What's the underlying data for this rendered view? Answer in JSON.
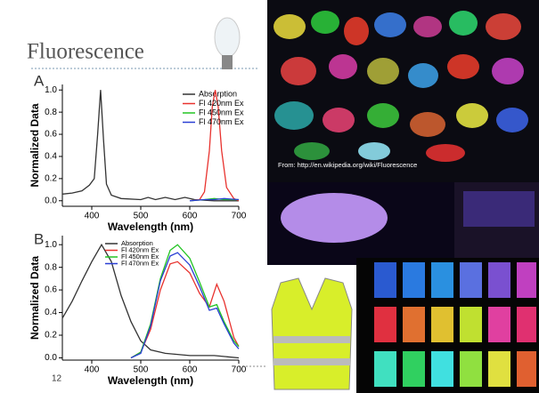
{
  "title": "Fluorescence",
  "caption": "From: http://en.wikipedia.org/wiki/Fluorescence",
  "page_number": "12",
  "chart_data": [
    {
      "type": "line",
      "panel_label": "A",
      "x_label": "Wavelength (nm)",
      "y_label": "Normalized Data",
      "xlim": [
        340,
        700
      ],
      "xticks": [
        400,
        500,
        600,
        700
      ],
      "ylim": [
        -0.05,
        1.05
      ],
      "yticks": [
        {
          "value": 0,
          "label": "0.0"
        },
        0.2,
        0.4,
        0.6,
        0.8,
        {
          "value": 1,
          "label": "1.0"
        }
      ],
      "series": [
        {
          "name": "Absorption",
          "color": "#333333",
          "x": [
            340,
            360,
            380,
            395,
            405,
            412,
            418,
            424,
            430,
            440,
            460,
            500,
            515,
            530,
            550,
            570,
            590,
            610,
            650,
            700
          ],
          "values": [
            0.06,
            0.07,
            0.09,
            0.14,
            0.2,
            0.6,
            1.0,
            0.55,
            0.15,
            0.05,
            0.02,
            0.01,
            0.03,
            0.01,
            0.03,
            0.01,
            0.03,
            0.01,
            0.0,
            0.0
          ]
        },
        {
          "name": "Fl 420nm Ex",
          "color": "#e8322e",
          "x": [
            600,
            620,
            630,
            640,
            646,
            652,
            658,
            665,
            675,
            690,
            700
          ],
          "values": [
            0.0,
            0.01,
            0.08,
            0.45,
            0.85,
            1.0,
            0.85,
            0.45,
            0.12,
            0.02,
            0.0
          ]
        },
        {
          "name": "Fl 450nm Ex",
          "color": "#22c422",
          "x": [
            600,
            630,
            650,
            670,
            700
          ],
          "values": [
            0.0,
            0.01,
            0.02,
            0.01,
            0.01
          ]
        },
        {
          "name": "Fl 470nm Ex",
          "color": "#2a3fd4",
          "x": [
            600,
            630,
            650,
            670,
            700
          ],
          "values": [
            0.0,
            0.01,
            0.01,
            0.02,
            0.01
          ]
        }
      ]
    },
    {
      "type": "line",
      "panel_label": "B",
      "x_label": "Wavelength (nm)",
      "y_label": "Normalized Data",
      "xlim": [
        340,
        700
      ],
      "xticks": [
        400,
        500,
        600,
        700
      ],
      "ylim": [
        -0.02,
        1.08
      ],
      "yticks": [
        {
          "value": 0,
          "label": "0.0"
        },
        0.2,
        0.4,
        0.6,
        0.8,
        {
          "value": 1,
          "label": "1.0"
        }
      ],
      "series": [
        {
          "name": "Absorption",
          "color": "#333333",
          "x": [
            340,
            360,
            380,
            400,
            420,
            440,
            460,
            480,
            500,
            520,
            550,
            600,
            650,
            700
          ],
          "values": [
            0.35,
            0.5,
            0.68,
            0.85,
            1.0,
            0.85,
            0.55,
            0.32,
            0.15,
            0.07,
            0.04,
            0.02,
            0.02,
            0.0
          ]
        },
        {
          "name": "Fl 420nm Ex",
          "color": "#e8322e",
          "x": [
            480,
            500,
            520,
            540,
            560,
            575,
            600,
            620,
            640,
            655,
            670,
            690,
            700
          ],
          "values": [
            0.0,
            0.05,
            0.25,
            0.6,
            0.83,
            0.85,
            0.75,
            0.57,
            0.45,
            0.65,
            0.5,
            0.18,
            0.1
          ]
        },
        {
          "name": "Fl 450nm Ex",
          "color": "#22c422",
          "x": [
            480,
            500,
            520,
            540,
            560,
            575,
            600,
            620,
            640,
            655,
            670,
            690,
            700
          ],
          "values": [
            0.0,
            0.05,
            0.3,
            0.7,
            0.95,
            1.0,
            0.88,
            0.67,
            0.45,
            0.47,
            0.32,
            0.15,
            0.1
          ]
        },
        {
          "name": "Fl 470nm Ex",
          "color": "#2a3fd4",
          "x": [
            480,
            500,
            520,
            540,
            560,
            575,
            600,
            620,
            640,
            655,
            670,
            690,
            700
          ],
          "values": [
            0.0,
            0.04,
            0.28,
            0.68,
            0.9,
            0.93,
            0.82,
            0.63,
            0.42,
            0.44,
            0.3,
            0.13,
            0.08
          ]
        }
      ]
    }
  ]
}
